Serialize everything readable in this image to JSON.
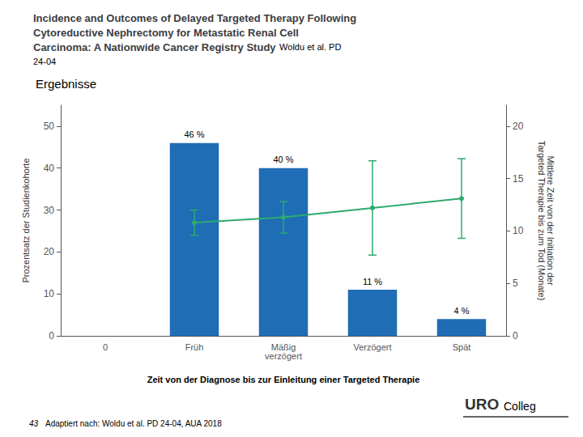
{
  "chart_data": {
    "type": "bar",
    "title": "Incidence and Outcomes of Delayed Targeted Therapy Following\nCytoreductive Nephrectomy for Metastatic Renal Cell\nCarcinoma: A Nationwide Cancer Registry Study",
    "subtitle": "Ergebnisse",
    "annotations": [
      "Woldu et al. PD",
      "24-04",
      "43",
      "Adaptiert nach: Woldu et al. PD 24-04, AUA 2018",
      "URO",
      "Colleg"
    ],
    "xlabel": "Zeit von der Diagnose bis zur Einleitung einer Targeted Therapie",
    "ylabel": "Prozentsatz der Studienkohorte",
    "y2label": "Mittlere Zeit von der Initiation der\nTargeted Therapie bis zum Tod (Monate)",
    "categories": [
      "0",
      "Früh",
      "Mäßig\nverzögert",
      "Verzögert",
      "Spät"
    ],
    "series": [
      {
        "type": "bar",
        "color": "#1F6DB5",
        "data_labels": true,
        "values": [
          null,
          46,
          40,
          11,
          4
        ],
        "value_labels": [
          null,
          "46 %",
          "40 %",
          "11 %",
          "4 %"
        ]
      },
      {
        "type": "line",
        "axis": "y2",
        "color": "#2EAA6E",
        "marker": "circle",
        "values": [
          null,
          10.8,
          11.3,
          12.2,
          13.1
        ],
        "error_low": [
          null,
          1.2,
          1.5,
          4.5,
          3.8
        ],
        "error_high": [
          null,
          1.2,
          1.5,
          4.5,
          3.8
        ]
      }
    ],
    "ylim": [
      0,
      55
    ],
    "yticks": [
      0,
      10,
      20,
      30,
      40,
      50
    ],
    "y2lim": [
      0,
      22
    ],
    "y2ticks": [
      0,
      5,
      10,
      15,
      20
    ],
    "grid": false
  }
}
